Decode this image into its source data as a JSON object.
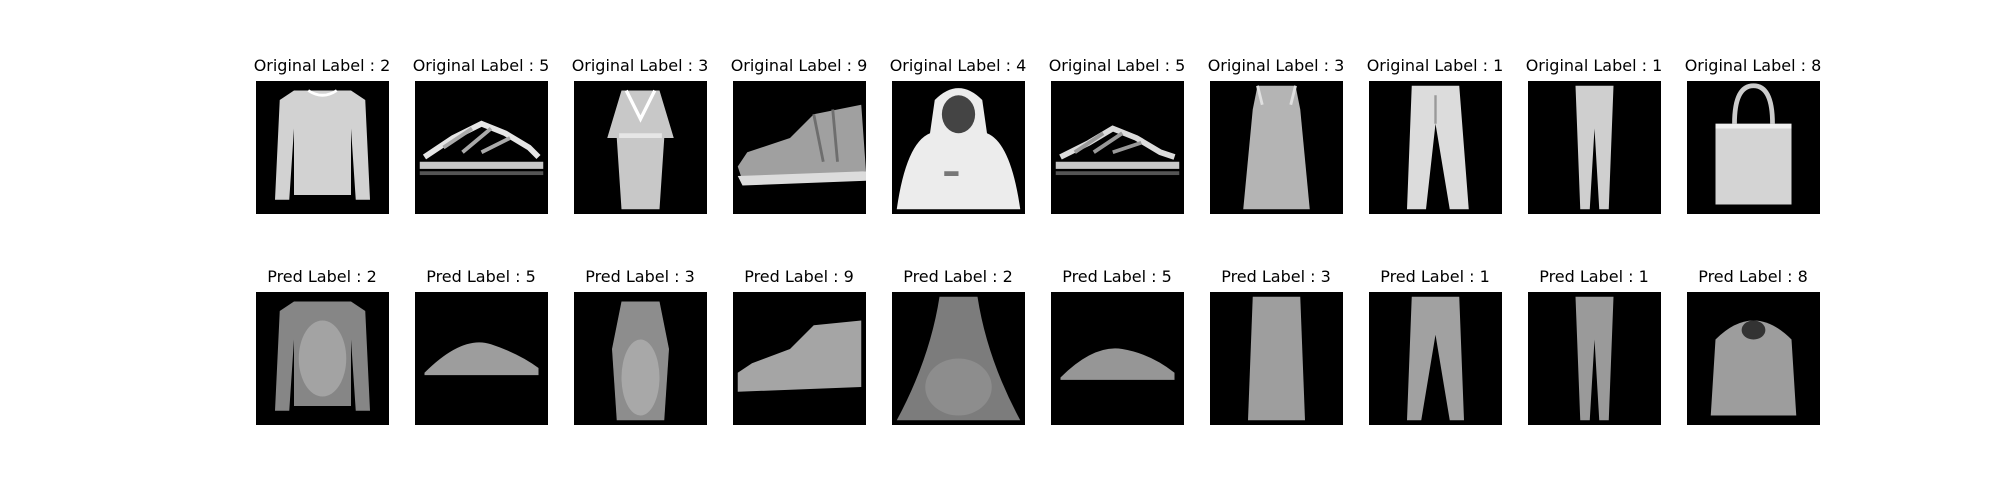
{
  "originals": [
    {
      "title": "Original Label : 2",
      "item": "long-sleeve-top"
    },
    {
      "title": "Original Label : 5",
      "item": "sandal"
    },
    {
      "title": "Original Label : 3",
      "item": "dress"
    },
    {
      "title": "Original Label : 9",
      "item": "ankle-boot"
    },
    {
      "title": "Original Label : 4",
      "item": "hooded-coat"
    },
    {
      "title": "Original Label : 5",
      "item": "sandal"
    },
    {
      "title": "Original Label : 3",
      "item": "dress"
    },
    {
      "title": "Original Label : 1",
      "item": "trousers"
    },
    {
      "title": "Original Label : 1",
      "item": "trousers"
    },
    {
      "title": "Original Label : 8",
      "item": "bag"
    }
  ],
  "predictions": [
    {
      "title": "Pred Label : 2",
      "item": "long-sleeve-top"
    },
    {
      "title": "Pred Label : 5",
      "item": "sandal"
    },
    {
      "title": "Pred Label : 3",
      "item": "dress"
    },
    {
      "title": "Pred Label : 9",
      "item": "ankle-boot"
    },
    {
      "title": "Pred Label : 2",
      "item": "blurry-top"
    },
    {
      "title": "Pred Label : 5",
      "item": "sandal"
    },
    {
      "title": "Pred Label : 3",
      "item": "dress"
    },
    {
      "title": "Pred Label : 1",
      "item": "trousers"
    },
    {
      "title": "Pred Label : 1",
      "item": "trousers"
    },
    {
      "title": "Pred Label : 8",
      "item": "bag"
    }
  ],
  "colors": {
    "background": "#ffffff",
    "thumbnail_background": "#000000",
    "garment_light": "#e6e6e6",
    "garment_mid": "#b4b4b4",
    "garment_dark": "#6e6e6e"
  }
}
